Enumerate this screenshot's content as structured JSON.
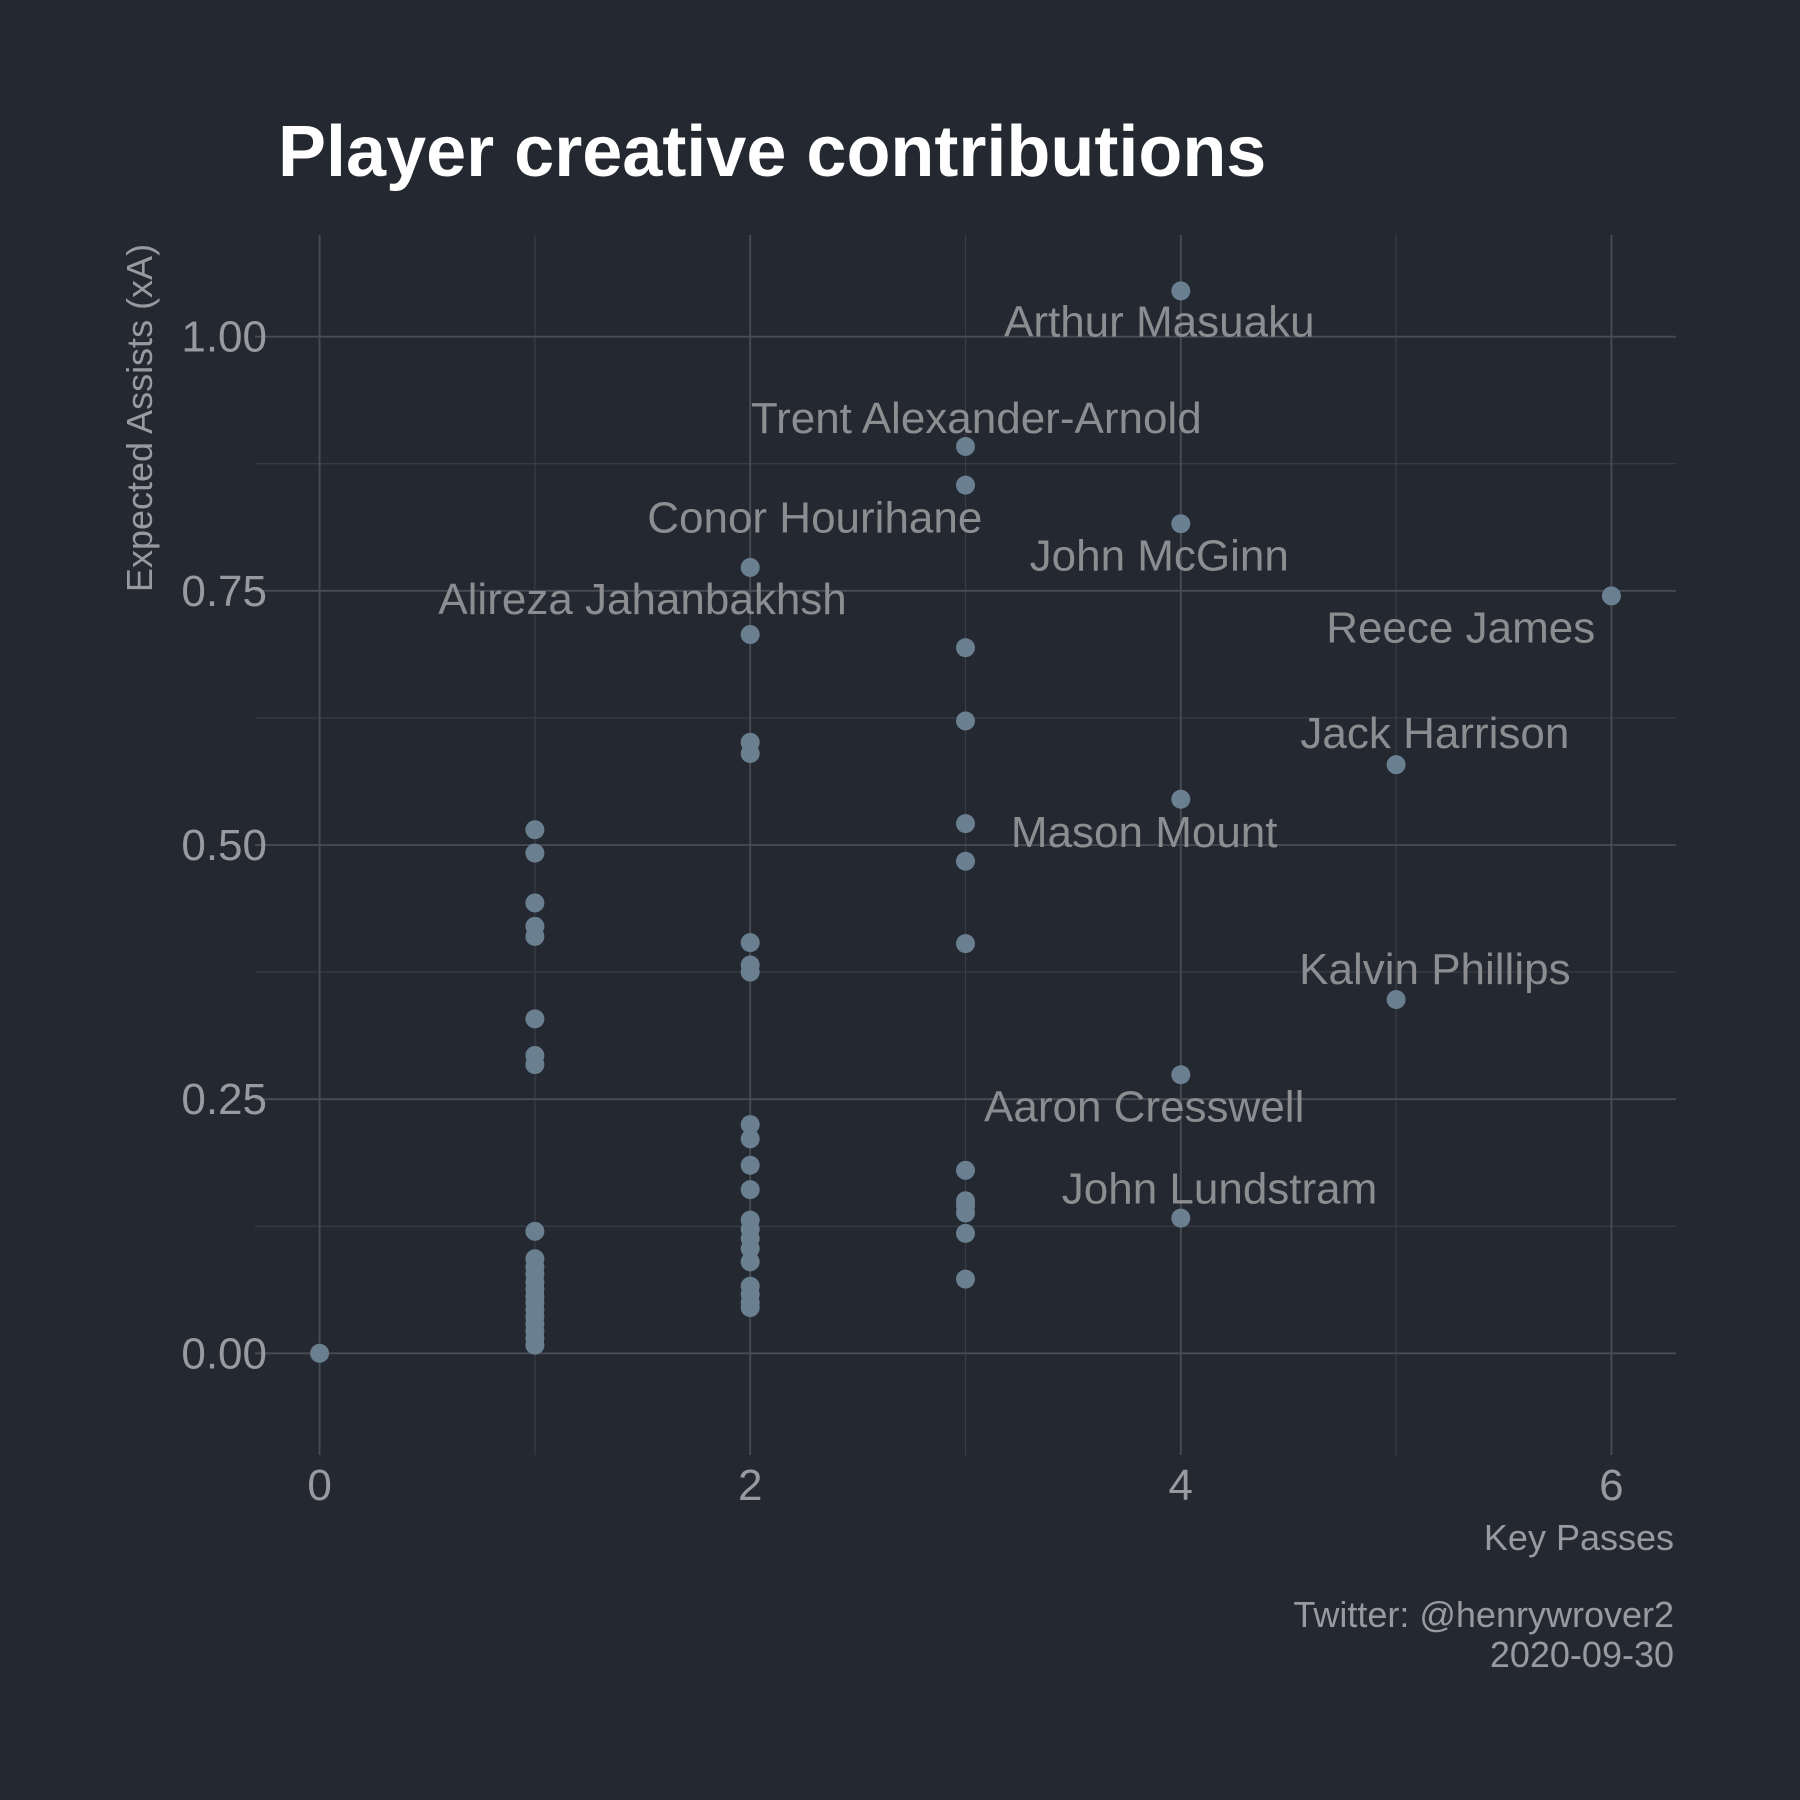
{
  "chart_data": {
    "type": "scatter",
    "title": "Player creative contributions",
    "xlabel": "Key Passes",
    "ylabel": "Expected Assists (xA)",
    "xlim": [
      -0.3,
      6.3
    ],
    "ylim": [
      -0.1,
      1.1
    ],
    "x_ticks": [
      0,
      2,
      4,
      6
    ],
    "x_tick_labels": [
      "0",
      "2",
      "4",
      "6"
    ],
    "y_ticks": [
      0,
      0.25,
      0.5,
      0.75,
      1.0
    ],
    "y_tick_labels": [
      "0.00",
      "0.25",
      "0.50",
      "0.75",
      "1.00"
    ],
    "grid": true,
    "point_color": "#6a7f8f",
    "caption": [
      "Twitter: @henrywrover2",
      "2020-09-30"
    ],
    "points": [
      {
        "x": 0,
        "y": 0.0
      },
      {
        "x": 1,
        "y": 0.515
      },
      {
        "x": 1,
        "y": 0.492
      },
      {
        "x": 1,
        "y": 0.443
      },
      {
        "x": 1,
        "y": 0.42
      },
      {
        "x": 1,
        "y": 0.41
      },
      {
        "x": 1,
        "y": 0.329
      },
      {
        "x": 1,
        "y": 0.293
      },
      {
        "x": 1,
        "y": 0.284
      },
      {
        "x": 1,
        "y": 0.12
      },
      {
        "x": 1,
        "y": 0.093
      },
      {
        "x": 1,
        "y": 0.085
      },
      {
        "x": 1,
        "y": 0.078
      },
      {
        "x": 1,
        "y": 0.07
      },
      {
        "x": 1,
        "y": 0.063
      },
      {
        "x": 1,
        "y": 0.056
      },
      {
        "x": 1,
        "y": 0.05
      },
      {
        "x": 1,
        "y": 0.043
      },
      {
        "x": 1,
        "y": 0.036
      },
      {
        "x": 1,
        "y": 0.029
      },
      {
        "x": 1,
        "y": 0.022
      },
      {
        "x": 1,
        "y": 0.015
      },
      {
        "x": 1,
        "y": 0.008
      },
      {
        "x": 2,
        "y": 0.773
      },
      {
        "x": 2,
        "y": 0.707
      },
      {
        "x": 2,
        "y": 0.601
      },
      {
        "x": 2,
        "y": 0.59
      },
      {
        "x": 2,
        "y": 0.404
      },
      {
        "x": 2,
        "y": 0.382
      },
      {
        "x": 2,
        "y": 0.375
      },
      {
        "x": 2,
        "y": 0.225
      },
      {
        "x": 2,
        "y": 0.211
      },
      {
        "x": 2,
        "y": 0.185
      },
      {
        "x": 2,
        "y": 0.161
      },
      {
        "x": 2,
        "y": 0.131
      },
      {
        "x": 2,
        "y": 0.122
      },
      {
        "x": 2,
        "y": 0.113
      },
      {
        "x": 2,
        "y": 0.103
      },
      {
        "x": 2,
        "y": 0.09
      },
      {
        "x": 2,
        "y": 0.066
      },
      {
        "x": 2,
        "y": 0.058
      },
      {
        "x": 2,
        "y": 0.05
      },
      {
        "x": 2,
        "y": 0.045
      },
      {
        "x": 3,
        "y": 0.892
      },
      {
        "x": 3,
        "y": 0.854
      },
      {
        "x": 3,
        "y": 0.694
      },
      {
        "x": 3,
        "y": 0.622
      },
      {
        "x": 3,
        "y": 0.521
      },
      {
        "x": 3,
        "y": 0.484
      },
      {
        "x": 3,
        "y": 0.403
      },
      {
        "x": 3,
        "y": 0.18
      },
      {
        "x": 3,
        "y": 0.15
      },
      {
        "x": 3,
        "y": 0.145
      },
      {
        "x": 3,
        "y": 0.138
      },
      {
        "x": 3,
        "y": 0.118
      },
      {
        "x": 3,
        "y": 0.073
      },
      {
        "x": 4,
        "y": 1.045
      },
      {
        "x": 4,
        "y": 0.816
      },
      {
        "x": 4,
        "y": 0.545
      },
      {
        "x": 4,
        "y": 0.274
      },
      {
        "x": 4,
        "y": 0.133
      },
      {
        "x": 5,
        "y": 0.579
      },
      {
        "x": 5,
        "y": 0.348
      },
      {
        "x": 6,
        "y": 0.745
      }
    ],
    "annotations": [
      {
        "text": "Arthur Masuaku",
        "x": 3.9,
        "y": 1.015
      },
      {
        "text": "Trent Alexander-Arnold",
        "x": 3.05,
        "y": 0.92
      },
      {
        "text": "Conor Hourihane",
        "x": 2.3,
        "y": 0.822
      },
      {
        "text": "John McGinn",
        "x": 3.9,
        "y": 0.785
      },
      {
        "text": "Alireza Jahanbakhsh",
        "x": 1.5,
        "y": 0.742
      },
      {
        "text": "Reece James",
        "x": 5.3,
        "y": 0.714
      },
      {
        "text": "Jack Harrison",
        "x": 5.18,
        "y": 0.61
      },
      {
        "text": "Mason Mount",
        "x": 3.83,
        "y": 0.513
      },
      {
        "text": "Kalvin Phillips",
        "x": 5.18,
        "y": 0.378
      },
      {
        "text": "Aaron Cresswell",
        "x": 3.83,
        "y": 0.243
      },
      {
        "text": "John Lundstram",
        "x": 4.18,
        "y": 0.162
      }
    ]
  }
}
